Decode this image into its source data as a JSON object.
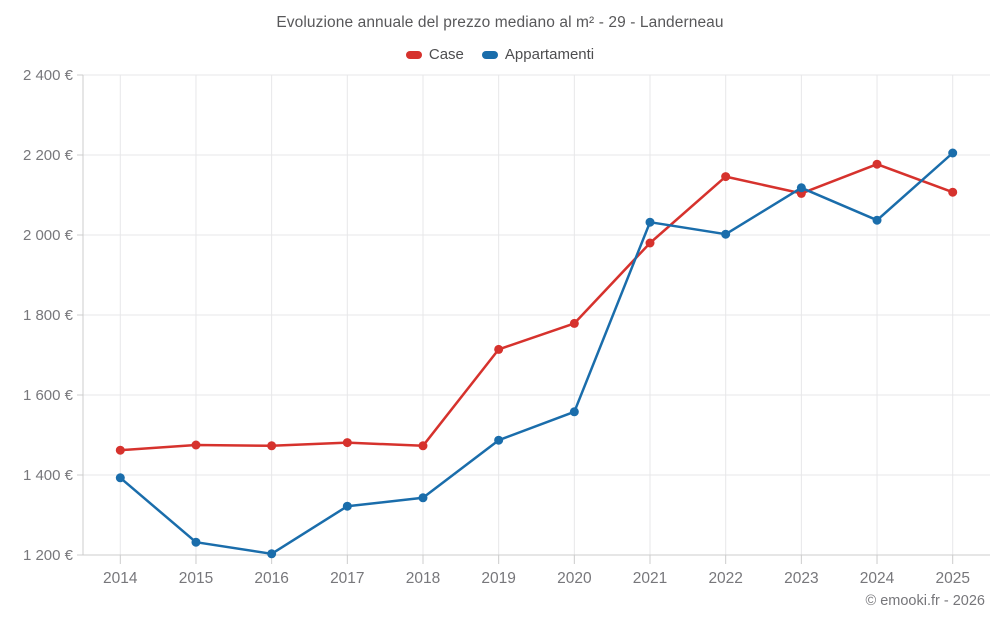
{
  "header": {
    "title": "Evoluzione annuale del prezzo mediano al m² - 29 - Landerneau"
  },
  "footer": {
    "credit": "© emooki.fr - 2026"
  },
  "chart_data": {
    "type": "line",
    "title": "Evoluzione annuale del prezzo mediano al m² - 29 - Landerneau",
    "x": [
      2014,
      2015,
      2016,
      2017,
      2018,
      2019,
      2020,
      2021,
      2022,
      2023,
      2024,
      2025
    ],
    "series": [
      {
        "name": "Case",
        "color": "#d6322d",
        "values": [
          1462,
          1475,
          1473,
          1481,
          1473,
          1714,
          1779,
          1980,
          2146,
          2104,
          2177,
          2107
        ]
      },
      {
        "name": "Appartamenti",
        "color": "#1a6dab",
        "values": [
          1393,
          1232,
          1203,
          1322,
          1343,
          1487,
          1558,
          2032,
          2002,
          2118,
          2037,
          2205
        ]
      }
    ],
    "ylim": [
      1200,
      2400
    ],
    "ytick_step": 200,
    "y_suffix": " €",
    "grid": true,
    "legend_position": "top",
    "style": {
      "grid_color": "#e7e7e9",
      "axis_color": "#cccccc",
      "tick_label_color": "#77777b",
      "line_width": 2.5,
      "marker_radius": 4.5
    }
  }
}
